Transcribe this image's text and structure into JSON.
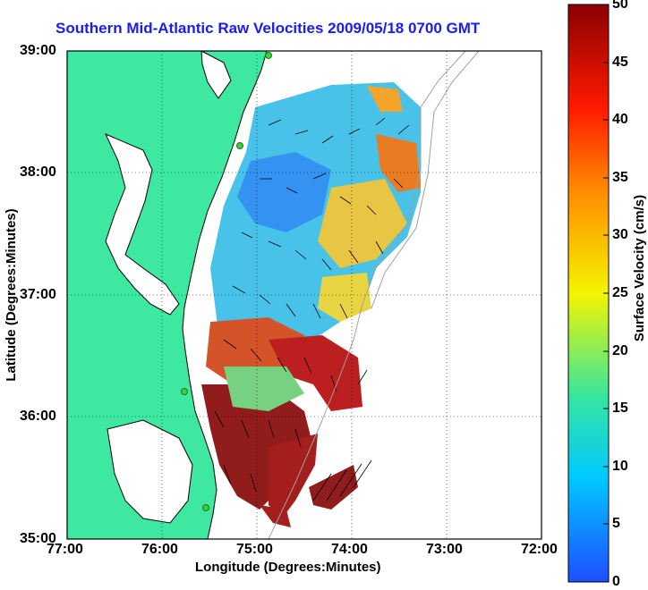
{
  "title": "Southern Mid-Atlantic Raw Velocities 2009/05/18 0700 GMT",
  "axes": {
    "xlabel": "Longitude (Degrees:Minutes)",
    "ylabel": "Latitude (Degrees:Minutes)",
    "xticks": [
      "77:00",
      "76:00",
      "75:00",
      "74:00",
      "73:00",
      "72:00"
    ],
    "yticks": [
      "39:00",
      "38:00",
      "37:00",
      "36:00",
      "35:00"
    ]
  },
  "colorbar": {
    "label": "Surface Velocity (cm/s)",
    "ticks": [
      "50",
      "45",
      "40",
      "35",
      "30",
      "25",
      "20",
      "15",
      "10",
      "5",
      "0"
    ],
    "range": [
      0,
      50
    ],
    "colors": [
      "#1f4dff",
      "#00c8ff",
      "#36e6a0",
      "#f4f400",
      "#ff8a00",
      "#ff1a00",
      "#8b0000"
    ]
  },
  "colors": {
    "land": "#3ee8a0",
    "land_outline": "#000000",
    "ocean": "#ffffff",
    "bathymetry": "#a0a0a0",
    "title": "#1a1aff",
    "station": "#3ad23a"
  }
}
